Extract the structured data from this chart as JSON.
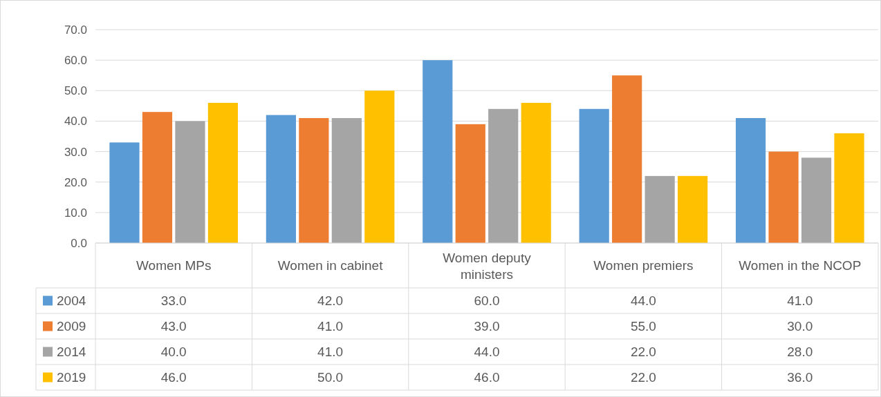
{
  "chart_data": {
    "type": "bar",
    "categories": [
      "Women MPs",
      "Women in cabinet",
      "Women deputy ministers",
      "Women premiers",
      "Women in the NCOP"
    ],
    "series": [
      {
        "name": "2004",
        "color": "#5b9bd5",
        "values": [
          33.0,
          42.0,
          60.0,
          44.0,
          41.0
        ],
        "value_labels": [
          "33.0",
          "42.0",
          "60.0",
          "44.0",
          "41.0"
        ]
      },
      {
        "name": "2009",
        "color": "#ed7d31",
        "values": [
          43.0,
          41.0,
          39.0,
          55.0,
          30.0
        ],
        "value_labels": [
          "43.0",
          "41.0",
          "39.0",
          "55.0",
          "30.0"
        ]
      },
      {
        "name": "2014",
        "color": "#a5a5a5",
        "values": [
          40.0,
          41.0,
          44.0,
          22.0,
          28.0
        ],
        "value_labels": [
          "40.0",
          "41.0",
          "44.0",
          "22.0",
          "28.0"
        ]
      },
      {
        "name": "2019",
        "color": "#ffc000",
        "values": [
          46.0,
          50.0,
          46.0,
          22.0,
          36.0
        ],
        "value_labels": [
          "46.0",
          "50.0",
          "46.0",
          "22.0",
          "36.0"
        ]
      }
    ],
    "ylim": [
      0,
      70
    ],
    "yticks": [
      {
        "value": 0,
        "label": "0.0"
      },
      {
        "value": 10,
        "label": "10.0"
      },
      {
        "value": 20,
        "label": "20.0"
      },
      {
        "value": 30,
        "label": "30.0"
      },
      {
        "value": 40,
        "label": "40.0"
      },
      {
        "value": 50,
        "label": "50.0"
      },
      {
        "value": 60,
        "label": "60.0"
      },
      {
        "value": 70,
        "label": "70.0"
      }
    ],
    "grid": "y",
    "legend": "bottom"
  }
}
